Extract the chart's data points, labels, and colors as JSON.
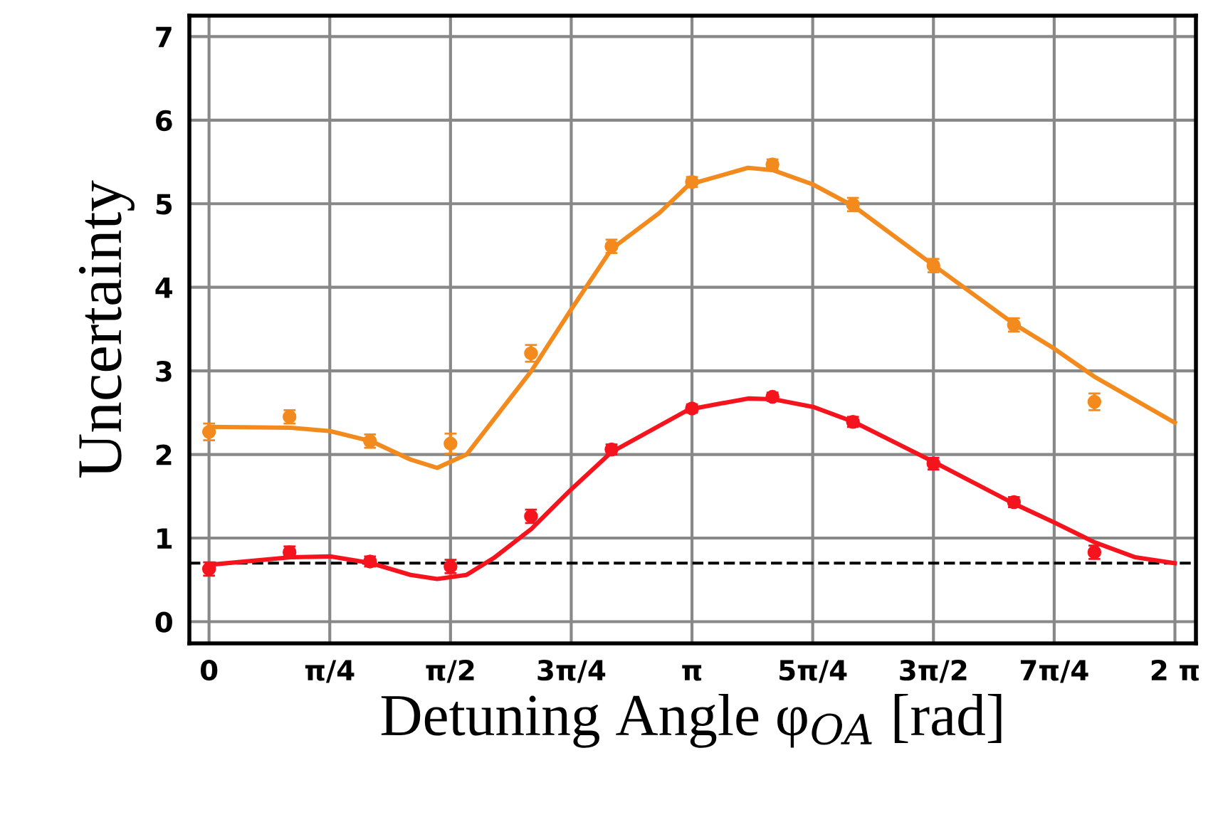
{
  "chart_data": {
    "type": "scatter",
    "xlabel": "Detuning Angle φ$_{OA}$ [rad]",
    "ylabel": "Uncertainty",
    "xlim": [
      -0.128,
      6.42
    ],
    "ylim": [
      -0.26,
      7.25
    ],
    "xticks": [
      {
        "value": 0,
        "label": "0"
      },
      {
        "value": 0.7854,
        "label": "π/4"
      },
      {
        "value": 1.5708,
        "label": "π/2"
      },
      {
        "value": 2.3562,
        "label": "3π/4"
      },
      {
        "value": 3.1416,
        "label": "π"
      },
      {
        "value": 3.927,
        "label": "5π/4"
      },
      {
        "value": 4.7124,
        "label": "3π/2"
      },
      {
        "value": 5.4978,
        "label": "7π/4"
      },
      {
        "value": 6.2832,
        "label": "2 π"
      }
    ],
    "yticks": [
      0,
      1,
      2,
      3,
      4,
      5,
      6,
      7
    ],
    "grid": true,
    "ref_lines": [
      {
        "axis": "y",
        "value": 0.7,
        "color": "#000000",
        "line_style": "dashed"
      }
    ],
    "series": [
      {
        "marker": "circle",
        "color": "#f28a1e",
        "x": [
          0,
          0.5236,
          1.0472,
          1.5708,
          2.0944,
          2.618,
          3.1416,
          3.6652,
          4.1888,
          4.7124,
          5.236,
          5.7596
        ],
        "values": [
          2.27,
          2.45,
          2.16,
          2.13,
          3.21,
          4.49,
          5.26,
          5.47,
          4.99,
          4.26,
          3.55,
          2.63
        ],
        "errors": [
          0.1,
          0.08,
          0.08,
          0.12,
          0.1,
          0.08,
          0.06,
          0.06,
          0.08,
          0.08,
          0.08,
          0.1
        ]
      },
      {
        "marker": "circle",
        "color": "#f5141e",
        "x": [
          0,
          0.5236,
          1.0472,
          1.5708,
          2.0944,
          2.618,
          3.1416,
          3.6652,
          4.1888,
          4.7124,
          5.236,
          5.7596
        ],
        "values": [
          0.63,
          0.83,
          0.72,
          0.66,
          1.26,
          2.06,
          2.55,
          2.69,
          2.39,
          1.89,
          1.43,
          0.83
        ],
        "errors": [
          0.08,
          0.07,
          0.06,
          0.08,
          0.08,
          0.06,
          0.05,
          0.05,
          0.06,
          0.07,
          0.06,
          0.08
        ]
      },
      {
        "type": "line",
        "marker": "none",
        "color": "#f28a1e",
        "x": [
          0,
          0.531,
          0.788,
          1.053,
          1.31,
          1.484,
          1.676,
          2.097,
          2.354,
          2.619,
          2.93,
          3.123,
          3.507,
          3.672,
          3.929,
          4.194,
          4.716,
          5.238,
          5.495,
          5.76,
          6.282
        ],
        "values": [
          2.33,
          2.32,
          2.28,
          2.16,
          1.94,
          1.84,
          2.0,
          3.0,
          3.73,
          4.46,
          4.89,
          5.23,
          5.43,
          5.4,
          5.23,
          4.97,
          4.26,
          3.56,
          3.27,
          2.93,
          2.38
        ]
      },
      {
        "type": "line",
        "marker": "none",
        "color": "#f5141e",
        "x": [
          0,
          0.531,
          0.788,
          1.053,
          1.31,
          1.484,
          1.676,
          1.859,
          2.097,
          2.354,
          2.619,
          3.123,
          3.507,
          3.672,
          3.929,
          4.194,
          4.716,
          5.238,
          5.495,
          5.76,
          6.026,
          6.282
        ],
        "values": [
          0.68,
          0.77,
          0.78,
          0.7,
          0.56,
          0.51,
          0.56,
          0.77,
          1.11,
          1.58,
          2.03,
          2.54,
          2.67,
          2.66,
          2.57,
          2.39,
          1.91,
          1.41,
          1.19,
          0.95,
          0.77,
          0.7
        ]
      }
    ]
  }
}
